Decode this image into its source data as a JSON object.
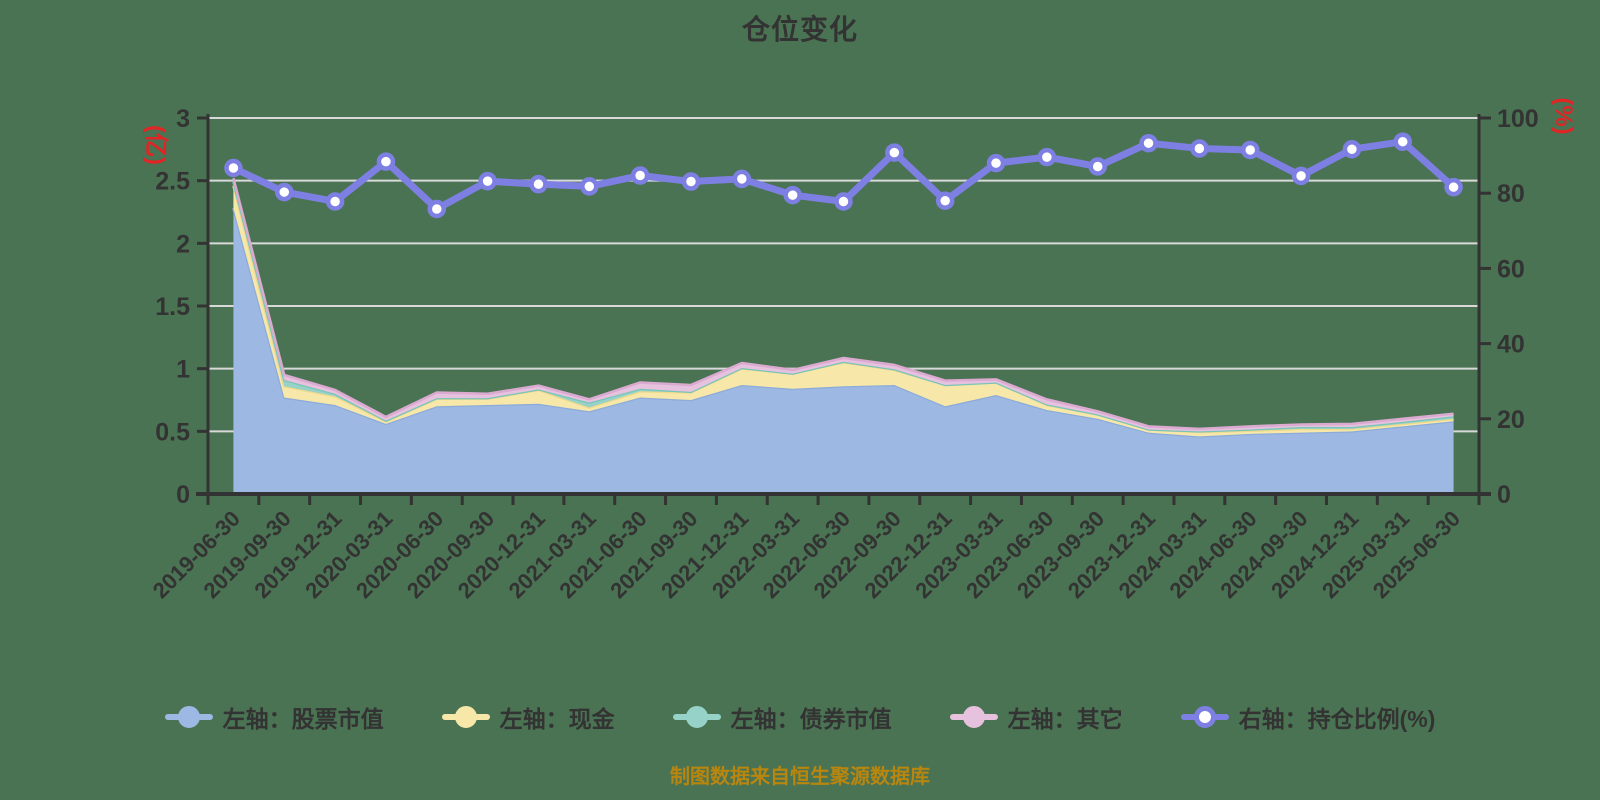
{
  "title": "仓位变化",
  "caption": "制图数据来自恒生聚源数据库",
  "colors": {
    "background": "#4a7353",
    "title_text": "#333333",
    "axis_line": "#333333",
    "tick_text": "#333333",
    "grid_line": "#d9d9d9",
    "axis_name_red": "#e12525",
    "caption_gold": "#b8860f"
  },
  "legend": [
    {
      "key": "stock",
      "label": "左轴：股票市值",
      "marker_fill": "#9db9e3",
      "marker_border": "#9db9e3",
      "line_color": "#9db9e3"
    },
    {
      "key": "cash",
      "label": "左轴：现金",
      "marker_fill": "#f7e8aa",
      "marker_border": "#f7e8aa",
      "line_color": "#f7e8aa"
    },
    {
      "key": "bond",
      "label": "左轴：债券市值",
      "marker_fill": "#96d2c8",
      "marker_border": "#96d2c8",
      "line_color": "#96d2c8"
    },
    {
      "key": "other",
      "label": "左轴：其它",
      "marker_fill": "#e6c2de",
      "marker_border": "#e6c2de",
      "line_color": "#e6c2de"
    },
    {
      "key": "ratio",
      "label": "右轴：持仓比例(%)",
      "marker_fill": "#ffffff",
      "marker_border": "#7e7fe3",
      "line_color": "#7e7fe3"
    }
  ],
  "chart_data": {
    "type": "area",
    "title": "仓位变化",
    "categories": [
      "2019-06-30",
      "2019-09-30",
      "2019-12-31",
      "2020-03-31",
      "2020-06-30",
      "2020-09-30",
      "2020-12-31",
      "2021-03-31",
      "2021-06-30",
      "2021-09-30",
      "2021-12-31",
      "2022-03-31",
      "2022-06-30",
      "2022-09-30",
      "2022-12-31",
      "2023-03-31",
      "2023-06-30",
      "2023-09-30",
      "2023-12-31",
      "2024-03-31",
      "2024-06-30",
      "2024-09-30",
      "2024-12-31",
      "2025-03-31",
      "2025-06-30"
    ],
    "left_axis": {
      "name": "(亿)",
      "min": 0,
      "max": 3,
      "ticks": [
        0,
        0.5,
        1,
        1.5,
        2,
        2.5,
        3
      ]
    },
    "right_axis": {
      "name": "(%)",
      "min": 0,
      "max": 100,
      "ticks": [
        0,
        20,
        40,
        60,
        80,
        100
      ]
    },
    "grid": true,
    "legend_position": "bottom",
    "series": [
      {
        "key": "stock",
        "name": "左轴：股票市值",
        "type": "area",
        "stack": true,
        "axis": "left",
        "fill": "#9db9e3",
        "edge": "#8cabd9",
        "values": [
          2.28,
          0.77,
          0.71,
          0.56,
          0.7,
          0.71,
          0.72,
          0.66,
          0.77,
          0.75,
          0.87,
          0.84,
          0.86,
          0.87,
          0.7,
          0.79,
          0.67,
          0.6,
          0.49,
          0.46,
          0.48,
          0.49,
          0.5,
          0.54,
          0.58
        ]
      },
      {
        "key": "cash",
        "name": "左轴：现金",
        "type": "area",
        "stack": true,
        "axis": "left",
        "fill": "#f7e8aa",
        "edge": "#eed98c",
        "values": [
          0.18,
          0.09,
          0.07,
          0.02,
          0.06,
          0.05,
          0.11,
          0.03,
          0.05,
          0.06,
          0.13,
          0.12,
          0.19,
          0.12,
          0.17,
          0.1,
          0.04,
          0.035,
          0.025,
          0.035,
          0.025,
          0.03,
          0.02,
          0.02,
          0.02
        ]
      },
      {
        "key": "bond",
        "name": "左轴：债券市值",
        "type": "area",
        "stack": true,
        "axis": "left",
        "fill": "#96d2c8",
        "edge": "#7ac5b9",
        "values": [
          0.03,
          0.05,
          0.02,
          0.005,
          0.005,
          0.005,
          0.005,
          0.04,
          0.02,
          0.005,
          0.005,
          0,
          0.005,
          0.005,
          0,
          0,
          0.005,
          0,
          0,
          0.005,
          0.01,
          0.015,
          0.015,
          0.015,
          0.02
        ]
      },
      {
        "key": "other",
        "name": "左轴：其它",
        "type": "area",
        "stack": true,
        "axis": "left",
        "fill": "#e6c2de",
        "edge": "#dbaad1",
        "values": [
          0.03,
          0.04,
          0.03,
          0.03,
          0.045,
          0.035,
          0.03,
          0.025,
          0.05,
          0.055,
          0.04,
          0.03,
          0.03,
          0.035,
          0.035,
          0.025,
          0.04,
          0.025,
          0.025,
          0.02,
          0.025,
          0.02,
          0.025,
          0.025,
          0.02
        ]
      },
      {
        "key": "ratio",
        "name": "右轴：持仓比例(%)",
        "type": "line",
        "axis": "right",
        "color": "#7e7fe3",
        "marker": "circle-white",
        "values": [
          86.7,
          80.3,
          77.8,
          88.4,
          75.8,
          83.2,
          82.4,
          81.8,
          84.7,
          83.1,
          83.8,
          79.5,
          77.8,
          90.8,
          78.0,
          88.0,
          89.6,
          87.1,
          93.3,
          91.9,
          91.5,
          84.6,
          91.7,
          93.7,
          81.6
        ]
      }
    ]
  }
}
